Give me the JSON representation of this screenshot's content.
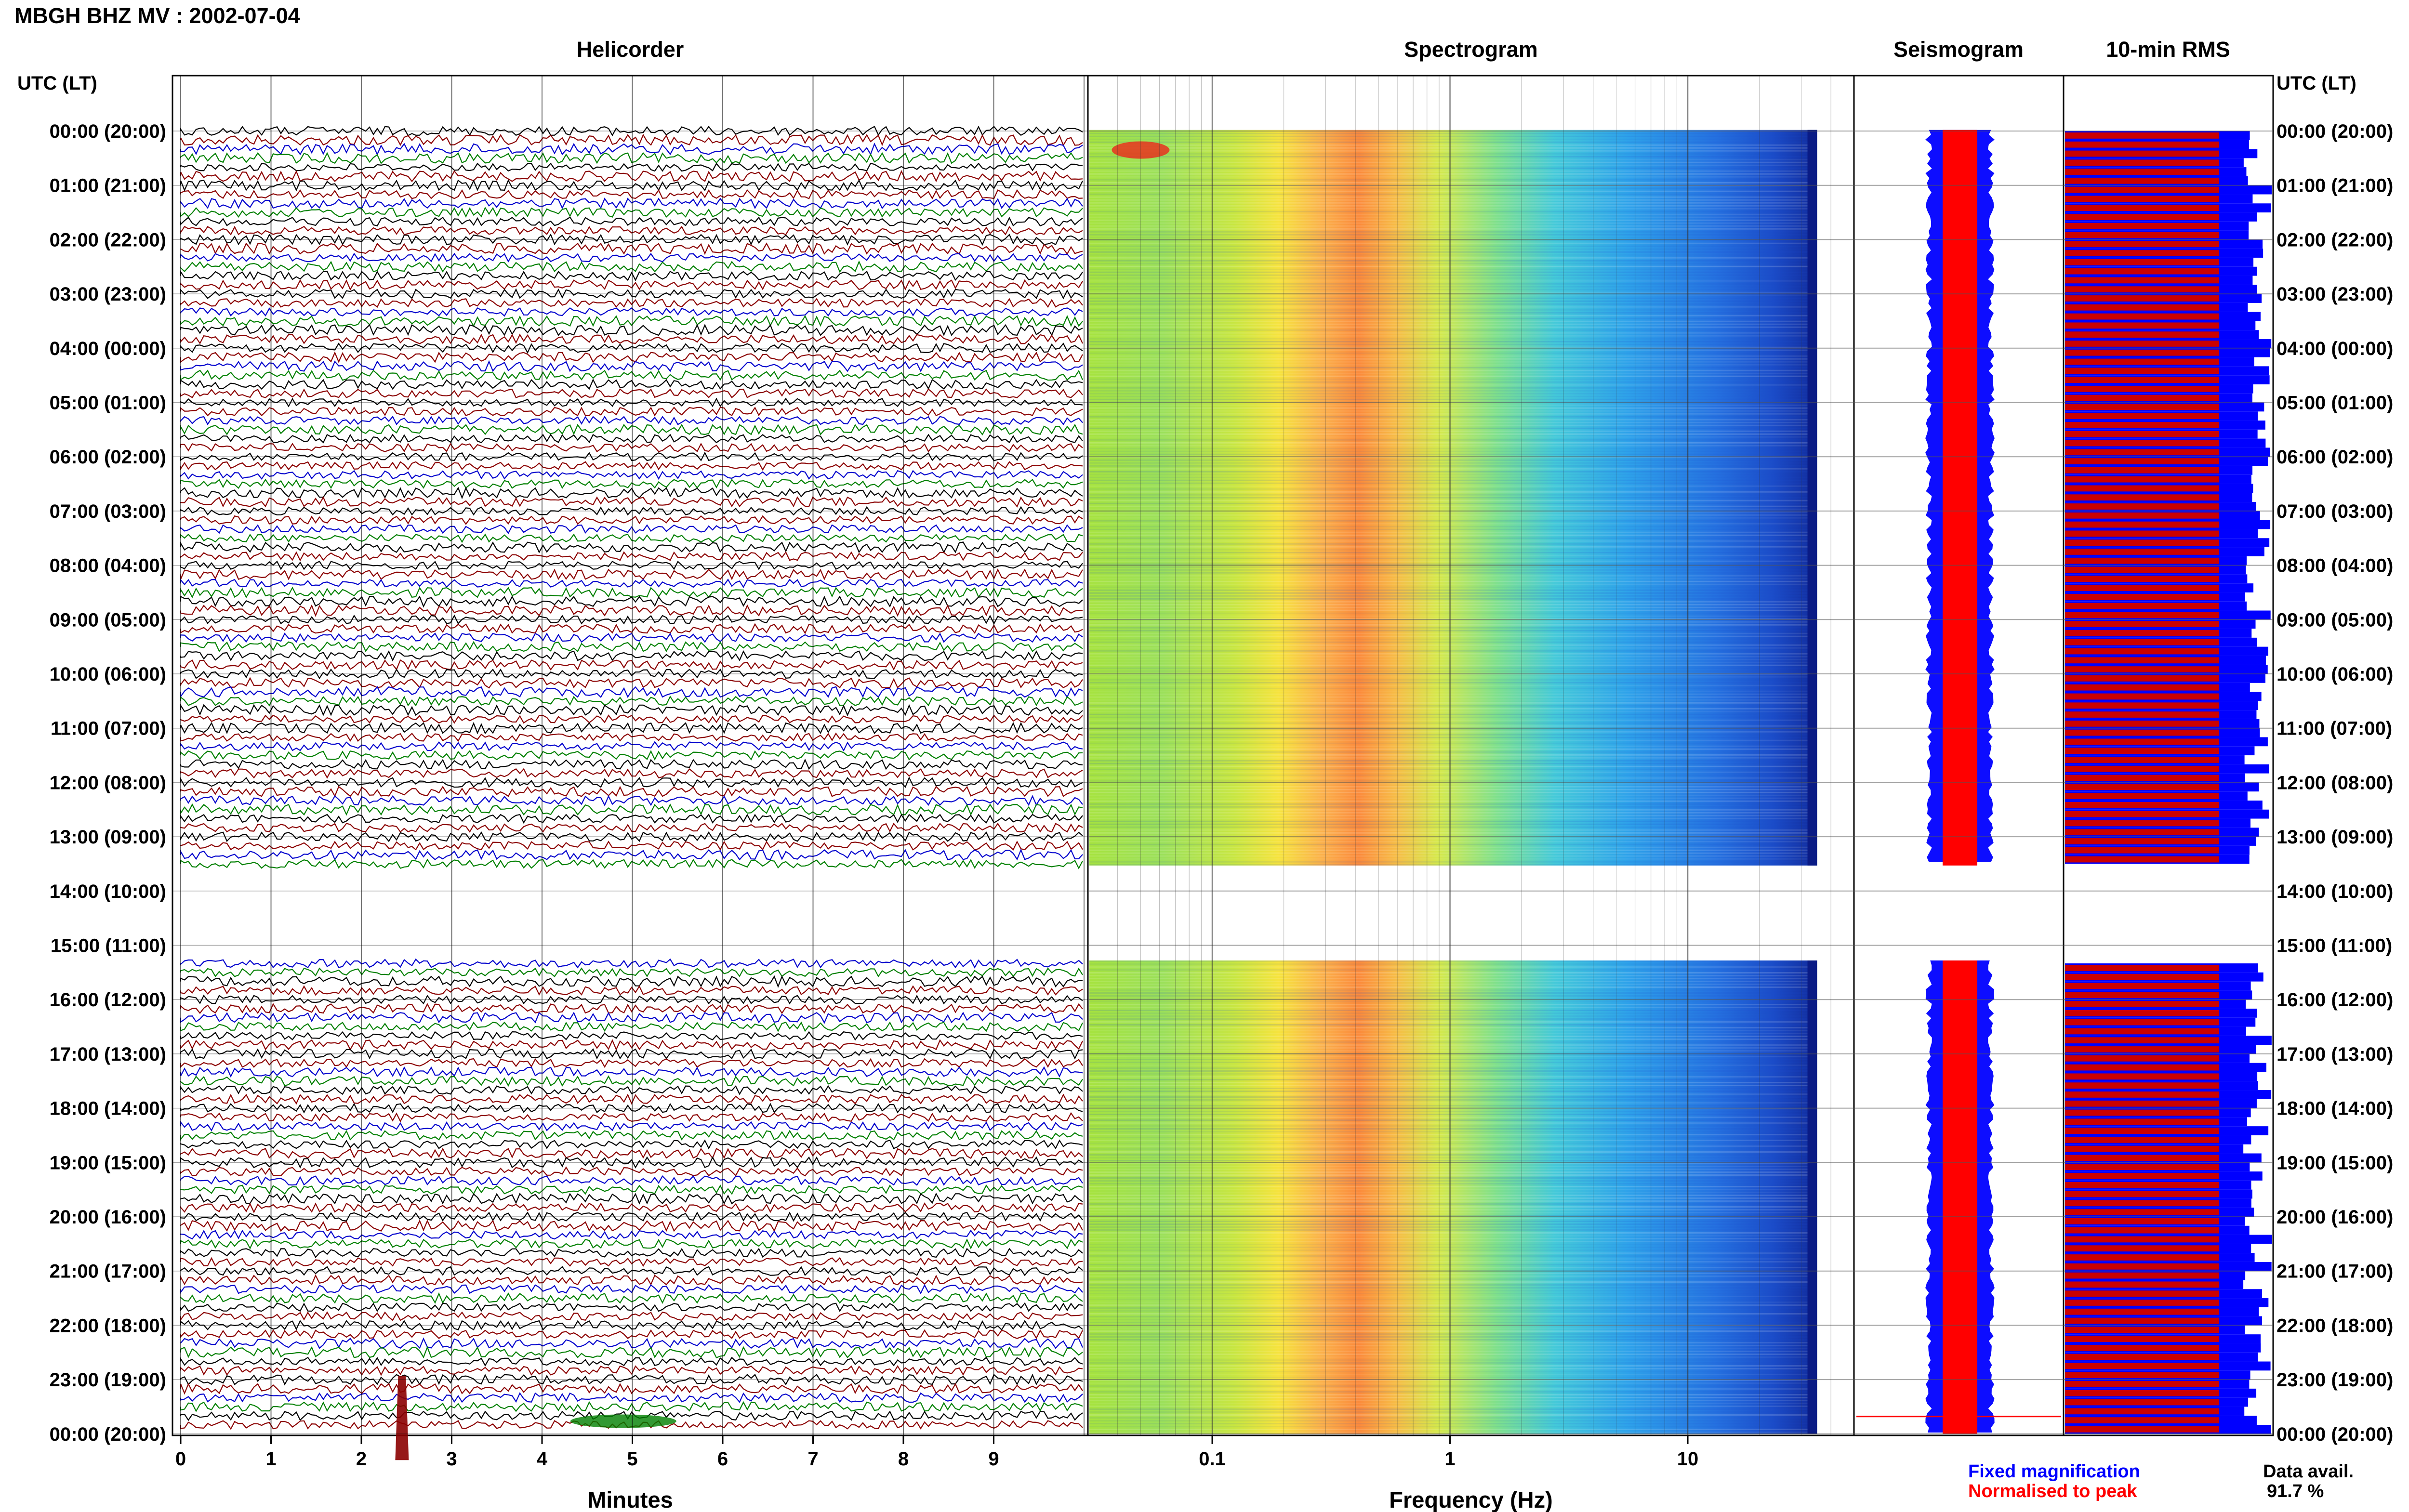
{
  "header": {
    "title": "MBGH BHZ MV : 2002-07-04"
  },
  "panels": {
    "helicorder": "Helicorder",
    "spectrogram": "Spectrogram",
    "seismogram": "Seismogram",
    "rms": "10-min RMS"
  },
  "time_axis": {
    "header_left": "UTC (LT)",
    "header_right": "UTC (LT)",
    "labels": [
      "00:00 (20:00)",
      "01:00 (21:00)",
      "02:00 (22:00)",
      "03:00 (23:00)",
      "04:00 (00:00)",
      "05:00 (01:00)",
      "06:00 (02:00)",
      "07:00 (03:00)",
      "08:00 (04:00)",
      "09:00 (05:00)",
      "10:00 (06:00)",
      "11:00 (07:00)",
      "12:00 (08:00)",
      "13:00 (09:00)",
      "14:00 (10:00)",
      "15:00 (11:00)",
      "16:00 (12:00)",
      "17:00 (13:00)",
      "18:00 (14:00)",
      "19:00 (15:00)",
      "20:00 (16:00)",
      "21:00 (17:00)",
      "22:00 (18:00)",
      "23:00 (19:00)",
      "00:00 (20:00)"
    ],
    "data_gap_hours": [
      13.5,
      15.25
    ]
  },
  "chart_data": [
    {
      "type": "line",
      "panel": "helicorder",
      "xlabel": "Minutes",
      "x_ticks": [
        "0",
        "1",
        "2",
        "3",
        "4",
        "5",
        "6",
        "7",
        "8",
        "9"
      ],
      "xlim": [
        0,
        10
      ],
      "trace_colors": [
        "#000000",
        "#8b0000",
        "#0000cd",
        "#008000"
      ],
      "events": [
        {
          "hour_row": 23.33,
          "minute": 2.45,
          "label": ""
        },
        {
          "hour_row": 23.5,
          "minute": 4.9,
          "label": ""
        }
      ]
    },
    {
      "type": "heatmap",
      "panel": "spectrogram",
      "xlabel": "Frequency (Hz)",
      "x_scale": "log",
      "xlim": [
        0.03,
        50
      ],
      "x_tick_labels": [
        "0.1",
        "1",
        "10"
      ],
      "peak_band_hz": [
        0.2,
        0.6
      ],
      "upper_limit_hz": 35
    },
    {
      "type": "line",
      "panel": "seismogram",
      "series": [
        {
          "name": "Fixed magnification",
          "color": "#0000ff"
        },
        {
          "name": "Normalised to peak",
          "color": "#ff0000"
        }
      ]
    },
    {
      "type": "bar",
      "panel": "rms",
      "categories_unit": "10-minute intervals",
      "series": [
        {
          "name": "Fixed magnification",
          "color": "#0000ff"
        },
        {
          "name": "Normalised to peak",
          "color": "#cc0000"
        }
      ]
    }
  ],
  "legend": {
    "fixed": "Fixed magnification",
    "normalised": "Normalised to peak",
    "fixed_color": "#0000ff",
    "normalised_color": "#ff0000"
  },
  "availability": {
    "label": "Data avail.",
    "value": "91.7 %"
  }
}
